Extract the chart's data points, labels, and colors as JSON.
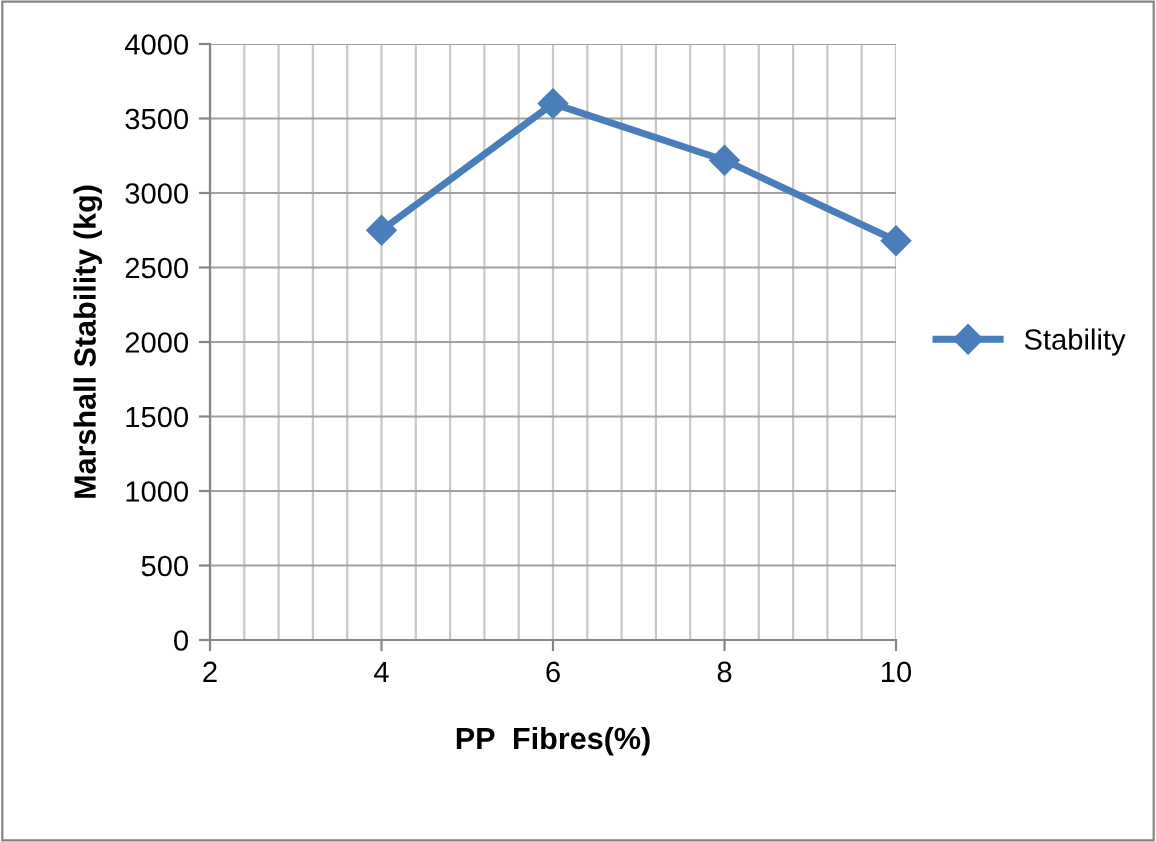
{
  "chart_data": {
    "type": "line",
    "xlabel": "PP  Fibres(%)",
    "ylabel": "Marshall Stability (kg)",
    "x": [
      4,
      6,
      8,
      10
    ],
    "series": [
      {
        "name": "Stability",
        "color": "#4a7ebb",
        "values": [
          2750,
          3600,
          3220,
          2680
        ]
      }
    ],
    "xlim": [
      2,
      10
    ],
    "xticks": [
      2,
      4,
      6,
      8,
      10
    ],
    "ylim": [
      0,
      4000
    ],
    "yticks": [
      0,
      500,
      1000,
      1500,
      2000,
      2500,
      3000,
      3500,
      4000
    ],
    "grid": true,
    "legend": "right",
    "marker": "diamond",
    "line_style": "solid"
  }
}
